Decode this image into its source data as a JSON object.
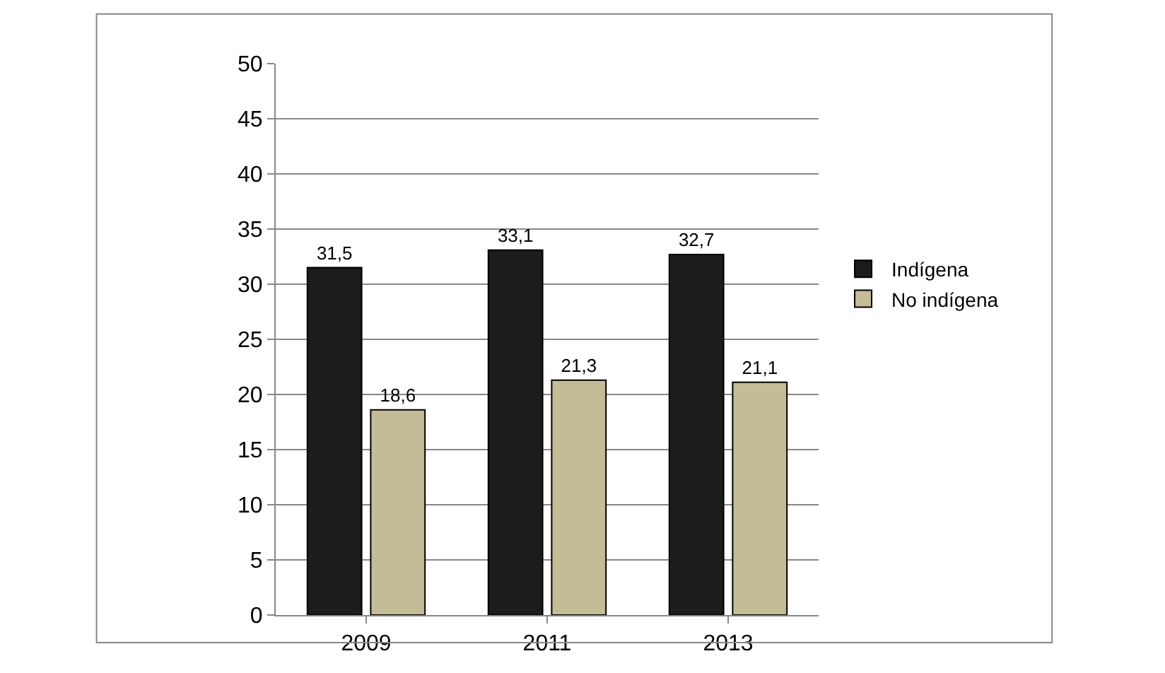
{
  "chart_data": {
    "type": "bar",
    "categories": [
      "2009",
      "2011",
      "2013"
    ],
    "series": [
      {
        "name": "Indígena",
        "color": "#1c1c1c",
        "values": [
          31.5,
          33.1,
          32.7
        ],
        "value_labels": [
          "31,5",
          "33,1",
          "32,7"
        ]
      },
      {
        "name": "No indígena",
        "color": "#c4bc96",
        "values": [
          18.6,
          21.3,
          21.1
        ],
        "value_labels": [
          "18,6",
          "21,3",
          "21,1"
        ]
      }
    ],
    "ylim": [
      0,
      50
    ],
    "yticks": [
      0,
      5,
      10,
      15,
      20,
      25,
      30,
      35,
      40,
      45,
      50
    ],
    "grid": "y",
    "legend": "right"
  }
}
